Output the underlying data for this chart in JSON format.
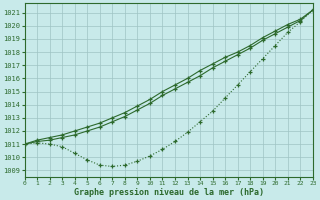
{
  "xlabel": "Graphe pression niveau de la mer (hPa)",
  "xlim": [
    0,
    23
  ],
  "ylim": [
    1008.5,
    1021.7
  ],
  "yticks": [
    1009,
    1010,
    1011,
    1012,
    1013,
    1014,
    1015,
    1016,
    1017,
    1018,
    1019,
    1020,
    1021
  ],
  "xticks": [
    0,
    1,
    2,
    3,
    4,
    5,
    6,
    7,
    8,
    9,
    10,
    11,
    12,
    13,
    14,
    15,
    16,
    17,
    18,
    19,
    20,
    21,
    22,
    23
  ],
  "bg_color": "#c8eaea",
  "line_color": "#2d6a2d",
  "grid_color": "#9fc4c4",
  "line1_y": [
    1011.0,
    1011.3,
    1011.5,
    1011.7,
    1012.0,
    1012.3,
    1012.6,
    1013.0,
    1013.4,
    1013.9,
    1014.4,
    1015.0,
    1015.5,
    1016.0,
    1016.6,
    1017.1,
    1017.6,
    1018.0,
    1018.5,
    1019.1,
    1019.6,
    1020.1,
    1020.5,
    1021.2
  ],
  "line2_y": [
    1011.0,
    1011.2,
    1011.3,
    1011.5,
    1011.7,
    1012.0,
    1012.3,
    1012.7,
    1013.1,
    1013.6,
    1014.1,
    1014.7,
    1015.2,
    1015.7,
    1016.2,
    1016.8,
    1017.3,
    1017.8,
    1018.3,
    1018.9,
    1019.4,
    1019.9,
    1020.4,
    1021.2
  ],
  "line3_y": [
    1011.0,
    1011.1,
    1011.0,
    1010.8,
    1010.3,
    1009.8,
    1009.4,
    1009.3,
    1009.4,
    1009.7,
    1010.1,
    1010.6,
    1011.2,
    1011.9,
    1012.7,
    1013.5,
    1014.5,
    1015.5,
    1016.5,
    1017.5,
    1018.5,
    1019.5,
    1020.3,
    1021.2
  ]
}
